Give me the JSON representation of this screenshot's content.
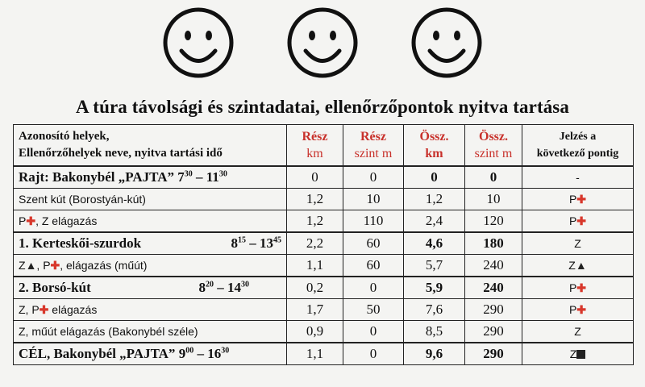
{
  "title": "A túra távolsági és szintadatai, ellenőrzőpontok nyitva tartása",
  "header": {
    "col1_line1": "Azonosító helyek,",
    "col1_line2": "Ellenőrzőhelyek neve, nyitva tartási idő",
    "resz_km_top": "Rész",
    "resz_km_bot": "km",
    "resz_szint_top": "Rész",
    "resz_szint_bot": "szint m",
    "ossz_km_top": "Össz.",
    "ossz_km_bot": "km",
    "ossz_szint_top": "Össz.",
    "ossz_szint_bot": "szint m",
    "jel_line1": "Jelzés a",
    "jel_line2": "következő pontig"
  },
  "rows": [
    {
      "prefix": "",
      "name": "Rajt: Bakonybél „PAJTA” ",
      "t1h": "7",
      "t1m": "30",
      "sep": " – ",
      "t2h": "11",
      "t2m": "30",
      "resz_km": "0",
      "resz_szint": "0",
      "ossz_km": "0",
      "ossz_szint": "0",
      "jel": "-"
    },
    {
      "name": "Szent kút (Borostyán-kút)",
      "resz_km": "1,2",
      "resz_szint": "10",
      "ossz_km": "1,2",
      "ossz_szint": "10",
      "jel_text": "P"
    },
    {
      "name_pre": "P",
      "name": ", Z elágazás",
      "resz_km": "1,2",
      "resz_szint": "110",
      "ossz_km": "2,4",
      "ossz_szint": "120",
      "jel_text": "P"
    },
    {
      "name": "1.  Kerteskői-szurdok",
      "t1h": "8",
      "t1m": "15",
      "sep": " – ",
      "t2h": "13",
      "t2m": "45",
      "resz_km": "2,2",
      "resz_szint": "60",
      "ossz_km": "4,6",
      "ossz_szint": "180",
      "jel": "Z"
    },
    {
      "name_pre": "Z",
      "name_mid": ", P",
      "name": ", elágazás (műút)",
      "resz_km": "1,1",
      "resz_szint": "60",
      "ossz_km": "5,7",
      "ossz_szint": "240",
      "jel_text": "Z"
    },
    {
      "name": "2.  Borsó-kút",
      "t1h": "8",
      "t1m": "20",
      "sep": " – ",
      "t2h": "14",
      "t2m": "30",
      "resz_km": "0,2",
      "resz_szint": "0",
      "ossz_km": "5,9",
      "ossz_szint": "240",
      "jel_text": "P"
    },
    {
      "name_pre": "Z, P",
      "name": " elágazás",
      "resz_km": "1,7",
      "resz_szint": "50",
      "ossz_km": "7,6",
      "ossz_szint": "290",
      "jel_text": "P"
    },
    {
      "name": "Z, műút elágazás (Bakonybél széle)",
      "resz_km": "0,9",
      "resz_szint": "0",
      "ossz_km": "8,5",
      "ossz_szint": "290",
      "jel": "Z"
    },
    {
      "name": "CÉL, Bakonybél „PAJTA” ",
      "t1h": "9",
      "t1m": "00",
      "sep": " – ",
      "t2h": "16",
      "t2m": "30",
      "resz_km": "1,1",
      "resz_szint": "0",
      "ossz_km": "9,6",
      "ossz_szint": "290",
      "jel_text": "Z"
    }
  ],
  "icons": [
    "smiley-icon",
    "red-cross-icon",
    "triangle-icon",
    "square-icon"
  ],
  "colors": {
    "red": "#c8312b",
    "ink": "#111111"
  }
}
